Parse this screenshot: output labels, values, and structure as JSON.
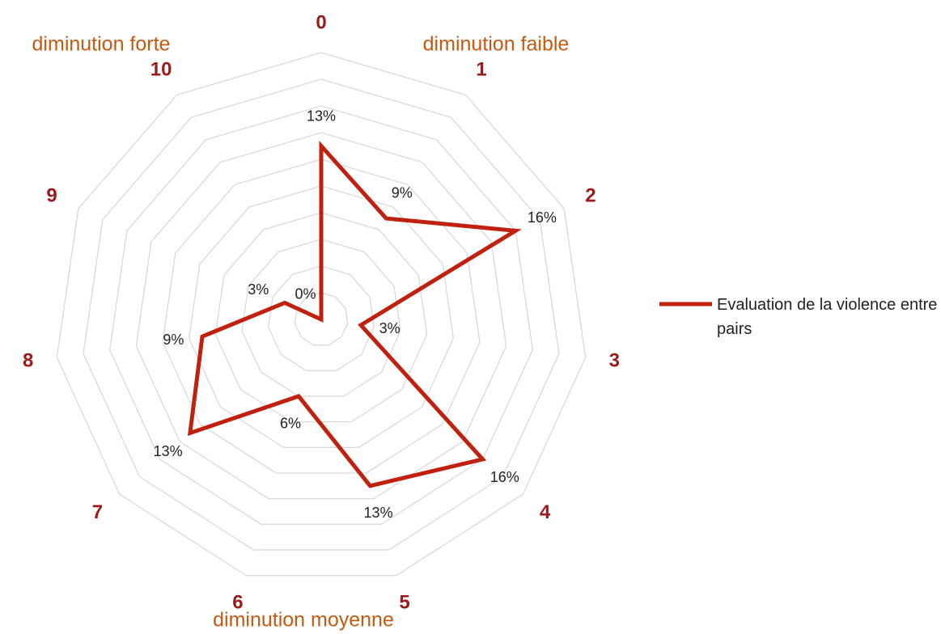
{
  "chart_data": {
    "type": "radar",
    "categories": [
      "0",
      "1",
      "2",
      "3",
      "4",
      "5",
      "6",
      "7",
      "8",
      "9",
      "10"
    ],
    "series": [
      {
        "name": "Evaluation de la violence entre pairs",
        "color": "#c0210f",
        "values": [
          13,
          9,
          16,
          3,
          16,
          13,
          6,
          13,
          9,
          3,
          0
        ],
        "value_labels": [
          "13%",
          "9%",
          "16%",
          "3%",
          "16%",
          "13%",
          "6%",
          "13%",
          "9%",
          "3%",
          "0%"
        ]
      }
    ],
    "rlim": [
      0,
      20
    ],
    "rticks": [
      2,
      4,
      6,
      8,
      10,
      12,
      14,
      16,
      18,
      20
    ],
    "grid": true,
    "annotations": [
      "diminution forte",
      "diminution faible",
      "diminution moyenne"
    ],
    "legend": "right"
  }
}
